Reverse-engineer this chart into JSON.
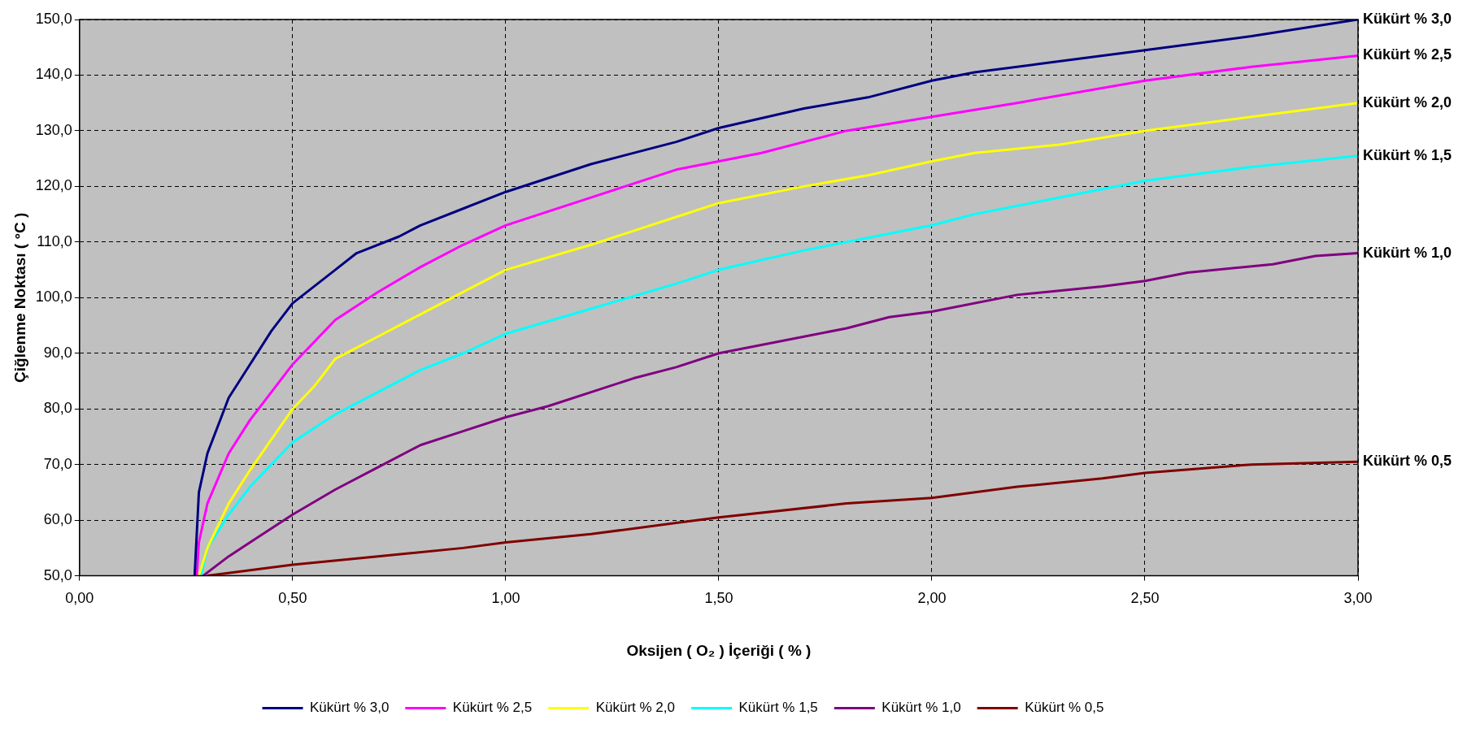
{
  "chart_data": {
    "type": "line",
    "xlabel": "Oksijen ( O₂ ) İçeriği ( % )",
    "ylabel": "Çiğlenme Noktası ( °C )",
    "xlim": [
      0,
      3
    ],
    "xticks": [
      {
        "value": 0,
        "label": "0,00"
      },
      {
        "value": 0.5,
        "label": "0,50"
      },
      {
        "value": 1,
        "label": "1,00"
      },
      {
        "value": 1.5,
        "label": "1,50"
      },
      {
        "value": 2,
        "label": "2,00"
      },
      {
        "value": 2.5,
        "label": "2,50"
      },
      {
        "value": 3,
        "label": "3,00"
      }
    ],
    "ylim": [
      50,
      150
    ],
    "yticks": [
      {
        "value": 50,
        "label": "50,0"
      },
      {
        "value": 60,
        "label": "60,0"
      },
      {
        "value": 70,
        "label": "70,0"
      },
      {
        "value": 80,
        "label": "80,0"
      },
      {
        "value": 90,
        "label": "90,0"
      },
      {
        "value": 100,
        "label": "100,0"
      },
      {
        "value": 110,
        "label": "110,0"
      },
      {
        "value": 120,
        "label": "120,0"
      },
      {
        "value": 130,
        "label": "130,0"
      },
      {
        "value": 140,
        "label": "140,0"
      },
      {
        "value": 150,
        "label": "150,0"
      }
    ],
    "grid": true,
    "legend": "bottom",
    "marker": "none",
    "line_style": "solid",
    "series": [
      {
        "name": "Kükürt % 3,0",
        "color": "#000080",
        "x": [
          0.27,
          0.28,
          0.3,
          0.35,
          0.4,
          0.45,
          0.5,
          0.6,
          0.65,
          0.75,
          0.8,
          0.9,
          1.0,
          1.2,
          1.4,
          1.5,
          1.7,
          1.85,
          2.0,
          2.1,
          2.25,
          2.5,
          2.75,
          3.0
        ],
        "values": [
          50,
          65,
          72,
          82,
          88,
          94,
          99,
          105,
          108,
          111,
          113,
          116,
          119,
          124,
          128,
          130.5,
          134,
          136,
          139,
          140.5,
          142,
          144.5,
          147,
          150
        ]
      },
      {
        "name": "Kükürt % 2,5",
        "color": "#ff00ff",
        "x": [
          0.275,
          0.28,
          0.3,
          0.35,
          0.4,
          0.5,
          0.6,
          0.7,
          0.8,
          0.9,
          1.0,
          1.2,
          1.4,
          1.5,
          1.6,
          1.8,
          2.0,
          2.2,
          2.5,
          2.75,
          3.0
        ],
        "values": [
          50,
          56,
          63,
          72,
          78,
          88,
          96,
          101,
          105.5,
          109.5,
          113,
          118,
          123,
          124.5,
          126,
          130,
          132.5,
          135,
          139,
          141.5,
          143.5
        ]
      },
      {
        "name": "Kükürt % 2,0",
        "color": "#ffff00",
        "x": [
          0.28,
          0.3,
          0.35,
          0.4,
          0.5,
          0.55,
          0.6,
          0.7,
          0.8,
          0.9,
          1.0,
          1.2,
          1.4,
          1.5,
          1.7,
          1.85,
          2.0,
          2.1,
          2.3,
          2.5,
          2.75,
          3.0
        ],
        "values": [
          50,
          55,
          63,
          69,
          80,
          84,
          89,
          93,
          97,
          101,
          105,
          109.5,
          114.5,
          117,
          120,
          122,
          124.5,
          126,
          127.5,
          130,
          132.5,
          135
        ]
      },
      {
        "name": "Kükürt % 1,5",
        "color": "#00ffff",
        "x": [
          0.285,
          0.3,
          0.35,
          0.4,
          0.5,
          0.6,
          0.7,
          0.8,
          0.9,
          1.0,
          1.2,
          1.4,
          1.5,
          1.7,
          2.0,
          2.1,
          2.3,
          2.5,
          2.75,
          3.0
        ],
        "values": [
          50,
          55,
          61,
          66,
          74,
          79,
          83,
          87,
          90,
          93.5,
          98,
          102.5,
          105,
          108.5,
          113,
          115,
          118,
          121,
          123.5,
          125.5
        ]
      },
      {
        "name": "Kükürt % 1,0",
        "color": "#800080",
        "x": [
          0.29,
          0.35,
          0.4,
          0.5,
          0.6,
          0.7,
          0.8,
          0.9,
          1.0,
          1.1,
          1.3,
          1.4,
          1.5,
          1.7,
          1.8,
          1.9,
          2.0,
          2.2,
          2.4,
          2.5,
          2.6,
          2.8,
          2.9,
          3.0
        ],
        "values": [
          50,
          53.5,
          56,
          61,
          65.5,
          69.5,
          73.5,
          76,
          78.5,
          80.5,
          85.5,
          87.5,
          90,
          93,
          94.5,
          96.5,
          97.5,
          100.5,
          102,
          103,
          104.5,
          106,
          107.5,
          108
        ]
      },
      {
        "name": "Kükürt % 0,5",
        "color": "#800000",
        "x": [
          0.3,
          0.4,
          0.5,
          0.7,
          0.9,
          1.0,
          1.2,
          1.4,
          1.5,
          1.8,
          2.0,
          2.2,
          2.4,
          2.5,
          2.75,
          3.0
        ],
        "values": [
          50,
          51,
          52,
          53.5,
          55,
          56,
          57.5,
          59.5,
          60.5,
          63,
          64,
          66,
          67.5,
          68.5,
          70,
          70.5
        ]
      }
    ]
  }
}
